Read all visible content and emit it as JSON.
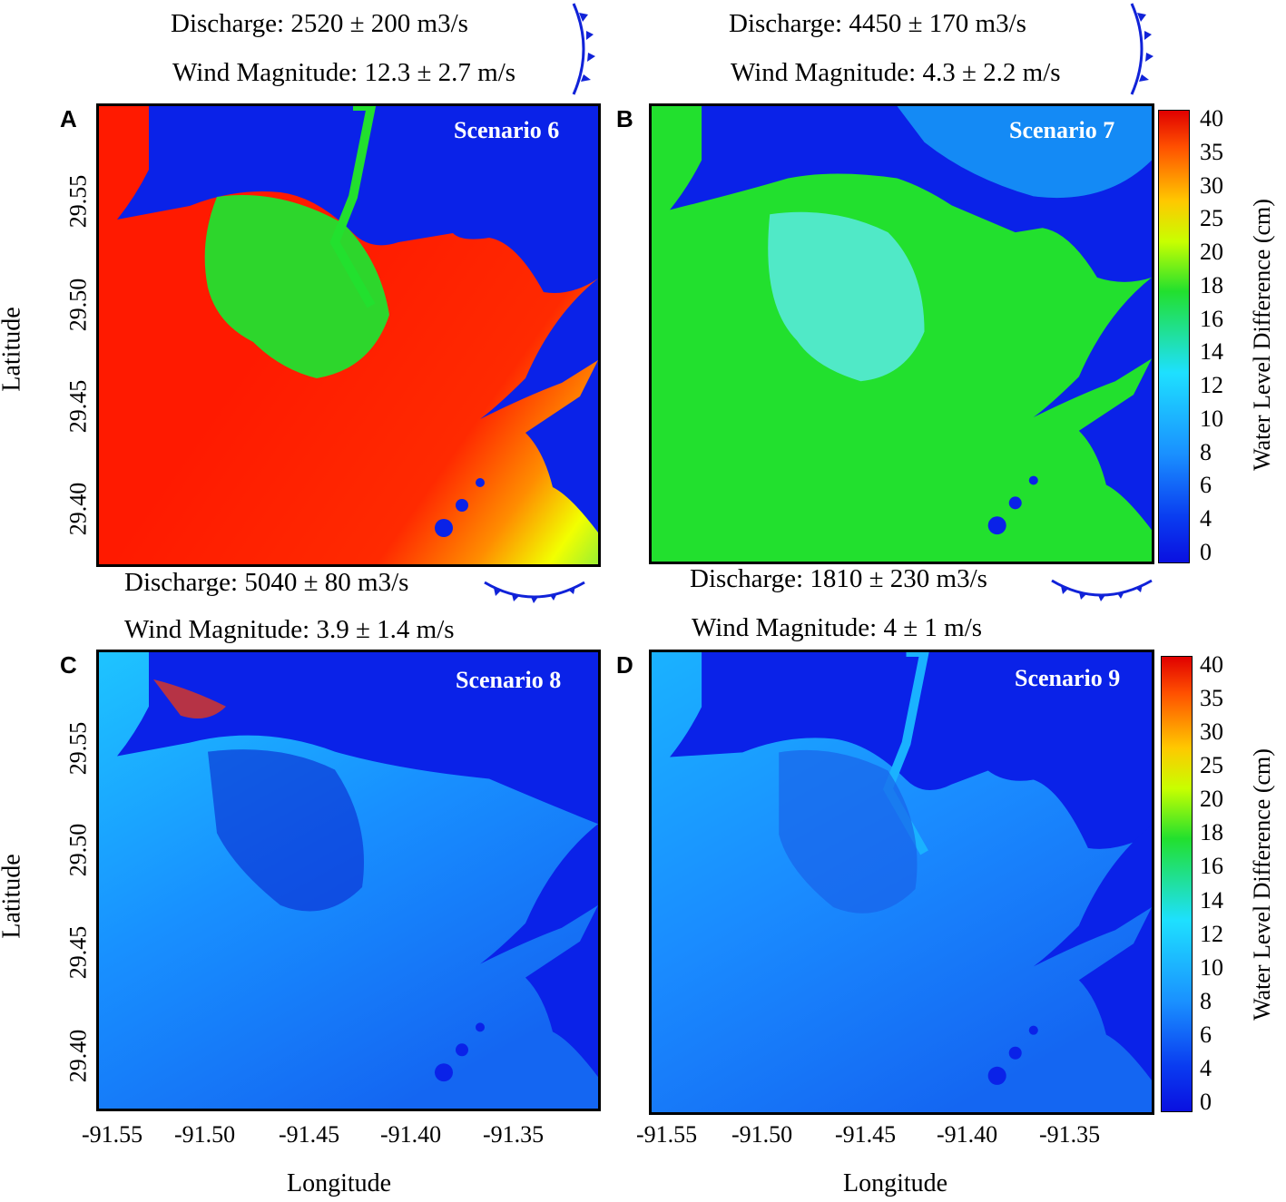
{
  "figure": {
    "panels": [
      {
        "letter": "A",
        "scenario": "Scenario 6",
        "discharge": "Discharge: 2520 ± 200 m3/s",
        "wind": "Wind Magnitude: 12.3 ± 2.7 m/s"
      },
      {
        "letter": "B",
        "scenario": "Scenario 7",
        "discharge": "Discharge: 4450 ± 170 m3/s",
        "wind": "Wind Magnitude: 4.3 ± 2.2 m/s"
      },
      {
        "letter": "C",
        "scenario": "Scenario 8",
        "discharge": "Discharge: 5040 ± 80 m3/s",
        "wind": "Wind Magnitude: 3.9 ± 1.4 m/s"
      },
      {
        "letter": "D",
        "scenario": "Scenario 9",
        "discharge": "Discharge: 1810 ± 230 m3/s",
        "wind": "Wind Magnitude: 4 ± 1 m/s"
      }
    ],
    "ylabel": "Latitude",
    "xlabel": "Longitude",
    "yticks": [
      "29.55",
      "29.50",
      "29.45",
      "29.40"
    ],
    "xticks": [
      "-91.55",
      "-91.50",
      "-91.45",
      "-91.40",
      "-91.35"
    ],
    "colorbar_label": "Water Level Difference (cm)",
    "colorbar_ticks": [
      "40",
      "35",
      "30",
      "25",
      "20",
      "18",
      "16",
      "14",
      "12",
      "10",
      "8",
      "6",
      "4",
      "0"
    ]
  },
  "chart_data": [
    {
      "type": "heatmap",
      "title": "Scenario 6",
      "panel": "A",
      "x_range": [
        -91.56,
        -91.31
      ],
      "y_range": [
        29.37,
        29.59
      ],
      "colorbar_range": [
        0,
        40
      ],
      "dominant_value_cm": 40,
      "front_symbol": "cold-front"
    },
    {
      "type": "heatmap",
      "title": "Scenario 7",
      "panel": "B",
      "x_range": [
        -91.56,
        -91.31
      ],
      "y_range": [
        29.37,
        29.59
      ],
      "colorbar_range": [
        0,
        40
      ],
      "dominant_value_cm": 18,
      "front_symbol": "cold-front"
    },
    {
      "type": "heatmap",
      "title": "Scenario 8",
      "panel": "C",
      "x_range": [
        -91.56,
        -91.31
      ],
      "y_range": [
        29.37,
        29.59
      ],
      "colorbar_range": [
        0,
        40
      ],
      "dominant_value_cm": 8,
      "front_symbol": "warm-front"
    },
    {
      "type": "heatmap",
      "title": "Scenario 9",
      "panel": "D",
      "x_range": [
        -91.56,
        -91.31
      ],
      "y_range": [
        29.37,
        29.59
      ],
      "colorbar_range": [
        0,
        40
      ],
      "dominant_value_cm": 8,
      "front_symbol": "warm-front"
    }
  ],
  "colors": {
    "red": "#ff1a00",
    "green": "#22e02e",
    "cyan": "#1ee0ff",
    "blue": "#0a22e8",
    "front": "#1022d8"
  }
}
